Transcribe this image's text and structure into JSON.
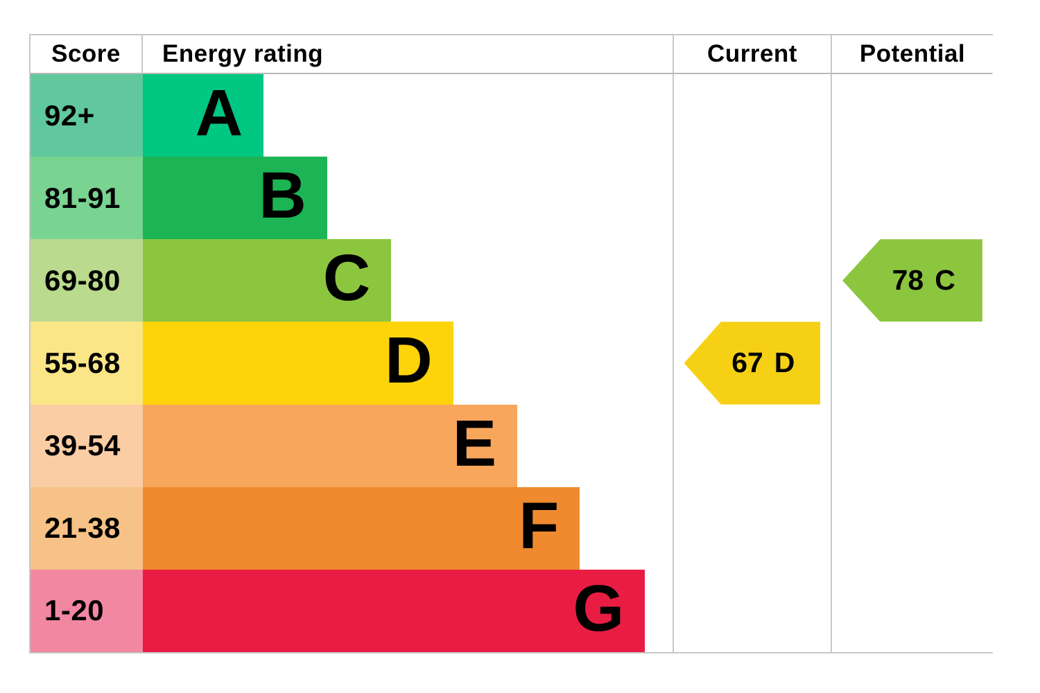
{
  "header": {
    "score": "Score",
    "energy_rating": "Energy rating",
    "current": "Current",
    "potential": "Potential"
  },
  "bands": [
    {
      "score": "92+",
      "letter": "A",
      "band_color": "#00c781",
      "score_color": "#60c89c",
      "bar_width": "22.8%"
    },
    {
      "score": "81-91",
      "letter": "B",
      "band_color": "#1cb454",
      "score_color": "#79d391",
      "bar_width": "34.8%"
    },
    {
      "score": "69-80",
      "letter": "C",
      "band_color": "#8cc63f",
      "score_color": "#bada8e",
      "bar_width": "46.9%"
    },
    {
      "score": "55-68",
      "letter": "D",
      "band_color": "#fdd309",
      "score_color": "#fae587",
      "bar_width": "58.6%"
    },
    {
      "score": "39-54",
      "letter": "E",
      "band_color": "#f7a65c",
      "score_color": "#fbcda4",
      "bar_width": "70.7%"
    },
    {
      "score": "21-38",
      "letter": "F",
      "band_color": "#ef8a2e",
      "score_color": "#f7c287",
      "bar_width": "82.5%"
    },
    {
      "score": "1-20",
      "letter": "G",
      "band_color": "#e91d43",
      "score_color": "#f287a1",
      "bar_width": "94.8%"
    }
  ],
  "current": {
    "value": "67",
    "letter": "D",
    "color": "#f5d015"
  },
  "potential": {
    "value": "78",
    "letter": "C",
    "color": "#8cc63f"
  },
  "colors": {
    "gridline": "#c8c8c8",
    "text": "#000000",
    "background": "#ffffff"
  },
  "chart_data": {
    "type": "bar",
    "title": "Energy rating (EPC)",
    "categories": [
      "A",
      "B",
      "C",
      "D",
      "E",
      "F",
      "G"
    ],
    "score_ranges": [
      "92+",
      "81-91",
      "69-80",
      "55-68",
      "39-54",
      "21-38",
      "1-20"
    ],
    "values": [
      1,
      2,
      3,
      4,
      5,
      6,
      7
    ],
    "columns": [
      "Score",
      "Energy rating",
      "Current",
      "Potential"
    ],
    "current": {
      "score": 67,
      "band": "D"
    },
    "potential": {
      "score": 78,
      "band": "C"
    },
    "band_colors": [
      "#00c781",
      "#1cb454",
      "#8cc63f",
      "#fdd309",
      "#f7a65c",
      "#ef8a2e",
      "#e91d43"
    ],
    "legend_position": "none",
    "grid": false
  }
}
